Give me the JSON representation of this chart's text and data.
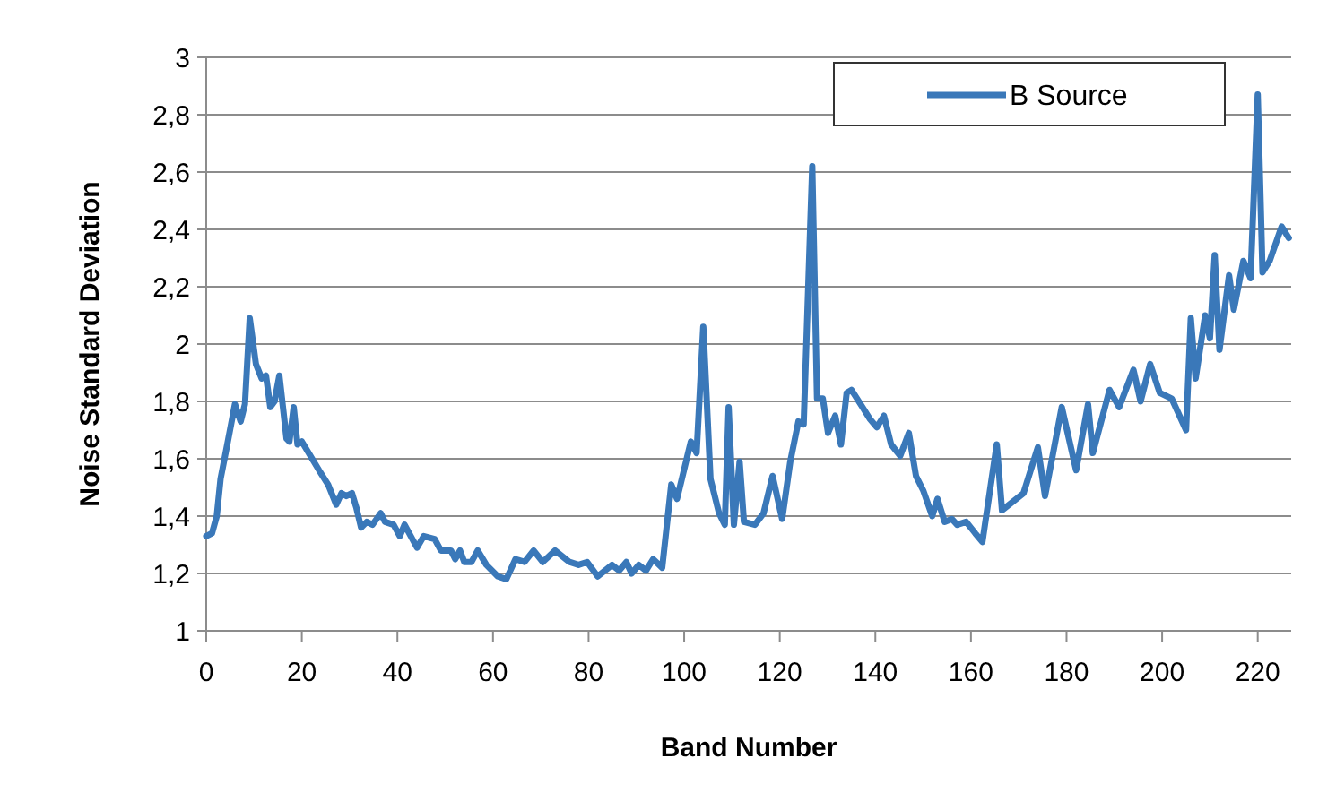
{
  "chart_data": {
    "type": "line",
    "xlabel": "Band Number",
    "ylabel": "Noise Standard Deviation",
    "xlim": [
      0,
      227
    ],
    "xticks": [
      0,
      20,
      40,
      60,
      80,
      100,
      120,
      140,
      160,
      180,
      200,
      220
    ],
    "ylim": [
      1,
      3
    ],
    "yticks": [
      1,
      {
        "value": 1.2,
        "label": "1,2"
      },
      {
        "value": 1.4,
        "label": "1,4"
      },
      {
        "value": 1.6,
        "label": "1,6"
      },
      {
        "value": 1.8,
        "label": "1,8"
      },
      2,
      {
        "value": 2.2,
        "label": "2,2"
      },
      {
        "value": 2.4,
        "label": "2,4"
      },
      {
        "value": 2.6,
        "label": "2,6"
      },
      {
        "value": 2.8,
        "label": "2,8"
      },
      3
    ],
    "grid": "y",
    "legend": "top right",
    "marker": "none",
    "line_style": "solid",
    "series": [
      {
        "name": "B Source",
        "color": "#3a78b9",
        "x": [
          0,
          1.2,
          2.2,
          3,
          4.4,
          6,
          7.2,
          8.1,
          9.1,
          10.4,
          11.6,
          12.5,
          13.4,
          14.3,
          15.3,
          16.8,
          17.4,
          18.3,
          19.1,
          20,
          21.8,
          23.6,
          25.5,
          27.2,
          28.3,
          29.3,
          30.5,
          31.4,
          32.4,
          33.6,
          34.8,
          36.5,
          37.4,
          39.2,
          40.5,
          41.5,
          42.8,
          44.1,
          45.5,
          47.8,
          49.1,
          51.2,
          52.1,
          53.1,
          54,
          55.5,
          56.8,
          58.6,
          61,
          62.8,
          64.7,
          66.6,
          68.5,
          70.4,
          73,
          76,
          77.9,
          79.7,
          81.9,
          84.9,
          86.4,
          87.9,
          89,
          90.5,
          92,
          93.5,
          95.4,
          97.3,
          98.5,
          101.4,
          102.6,
          104,
          105.5,
          107.3,
          108.5,
          109.3,
          110.4,
          111.6,
          112.5,
          114.8,
          116.6,
          118.5,
          120.5,
          122.2,
          123.9,
          125,
          126.8,
          127.8,
          129,
          130.1,
          131.6,
          132.8,
          134,
          135,
          137.3,
          138.8,
          140.3,
          141.8,
          143.3,
          145.2,
          147,
          148.5,
          150,
          151.9,
          153,
          154.5,
          156,
          157.1,
          159,
          160.9,
          162.4,
          165.4,
          166.5,
          171,
          174,
          175.5,
          179,
          182,
          184.5,
          185.5,
          189,
          191,
          194,
          195.5,
          197.5,
          199.5,
          202,
          205,
          206,
          207,
          209,
          210,
          211,
          212,
          214,
          215,
          217,
          218.5,
          220,
          221,
          222.5,
          225,
          226.5
        ],
        "values": [
          1.33,
          1.34,
          1.4,
          1.53,
          1.65,
          1.79,
          1.73,
          1.79,
          2.09,
          1.93,
          1.88,
          1.89,
          1.78,
          1.8,
          1.89,
          1.67,
          1.66,
          1.78,
          1.65,
          1.66,
          1.61,
          1.56,
          1.51,
          1.44,
          1.48,
          1.47,
          1.48,
          1.43,
          1.36,
          1.38,
          1.37,
          1.41,
          1.38,
          1.37,
          1.33,
          1.37,
          1.33,
          1.29,
          1.33,
          1.32,
          1.28,
          1.28,
          1.25,
          1.28,
          1.24,
          1.24,
          1.28,
          1.23,
          1.19,
          1.18,
          1.25,
          1.24,
          1.28,
          1.24,
          1.28,
          1.24,
          1.23,
          1.24,
          1.19,
          1.23,
          1.21,
          1.24,
          1.2,
          1.23,
          1.21,
          1.25,
          1.22,
          1.51,
          1.46,
          1.66,
          1.62,
          2.06,
          1.53,
          1.41,
          1.37,
          1.78,
          1.37,
          1.59,
          1.38,
          1.37,
          1.41,
          1.54,
          1.39,
          1.59,
          1.73,
          1.72,
          2.62,
          1.81,
          1.81,
          1.69,
          1.75,
          1.65,
          1.83,
          1.84,
          1.78,
          1.74,
          1.71,
          1.75,
          1.65,
          1.61,
          1.69,
          1.54,
          1.49,
          1.4,
          1.46,
          1.38,
          1.39,
          1.37,
          1.38,
          1.34,
          1.31,
          1.65,
          1.42,
          1.48,
          1.64,
          1.47,
          1.78,
          1.56,
          1.79,
          1.62,
          1.84,
          1.78,
          1.91,
          1.8,
          1.93,
          1.83,
          1.81,
          1.7,
          2.09,
          1.88,
          2.1,
          2.02,
          2.31,
          1.98,
          2.24,
          2.12,
          2.29,
          2.23,
          2.87,
          2.25,
          2.29,
          2.41,
          2.37
        ]
      }
    ]
  }
}
